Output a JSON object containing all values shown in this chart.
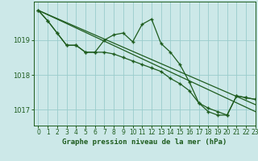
{
  "title": "Graphe pression niveau de la mer (hPa)",
  "background_color": "#cce8e8",
  "grid_color": "#99cccc",
  "line_color": "#1e5c1e",
  "xlim": [
    -0.5,
    23
  ],
  "ylim": [
    1016.55,
    1020.1
  ],
  "yticks": [
    1017,
    1018,
    1019
  ],
  "xticks": [
    0,
    1,
    2,
    3,
    4,
    5,
    6,
    7,
    8,
    9,
    10,
    11,
    12,
    13,
    14,
    15,
    16,
    17,
    18,
    19,
    20,
    21,
    22,
    23
  ],
  "series1_x": [
    0,
    1,
    2,
    3,
    4,
    5,
    6,
    7,
    8,
    9,
    10,
    11,
    12,
    13,
    14,
    15,
    16,
    17,
    18,
    19,
    20,
    21,
    22,
    23
  ],
  "series1_y": [
    1019.85,
    1019.55,
    1019.2,
    1018.85,
    1018.85,
    1018.65,
    1018.65,
    1019.0,
    1019.15,
    1019.2,
    1018.95,
    1019.45,
    1019.6,
    1018.9,
    1018.65,
    1018.3,
    1017.8,
    1017.2,
    1016.95,
    1016.85,
    1016.85,
    1017.4,
    1017.35,
    1017.3
  ],
  "series2_x": [
    0,
    1,
    2,
    3,
    4,
    5,
    6,
    7,
    8,
    9,
    10,
    11,
    12,
    13,
    14,
    15,
    16,
    17,
    18,
    19,
    20,
    21,
    22,
    23
  ],
  "series2_y": [
    1019.85,
    1019.55,
    1019.2,
    1018.85,
    1018.85,
    1018.65,
    1018.65,
    1018.65,
    1018.6,
    1018.5,
    1018.4,
    1018.3,
    1018.2,
    1018.1,
    1017.9,
    1017.75,
    1017.55,
    1017.2,
    1017.05,
    1016.95,
    1016.85,
    1017.4,
    1017.35,
    1017.3
  ],
  "series3_x": [
    0,
    23
  ],
  "series3_y": [
    1019.85,
    1016.95
  ],
  "series4_x": [
    0,
    23
  ],
  "series4_y": [
    1019.85,
    1017.15
  ]
}
